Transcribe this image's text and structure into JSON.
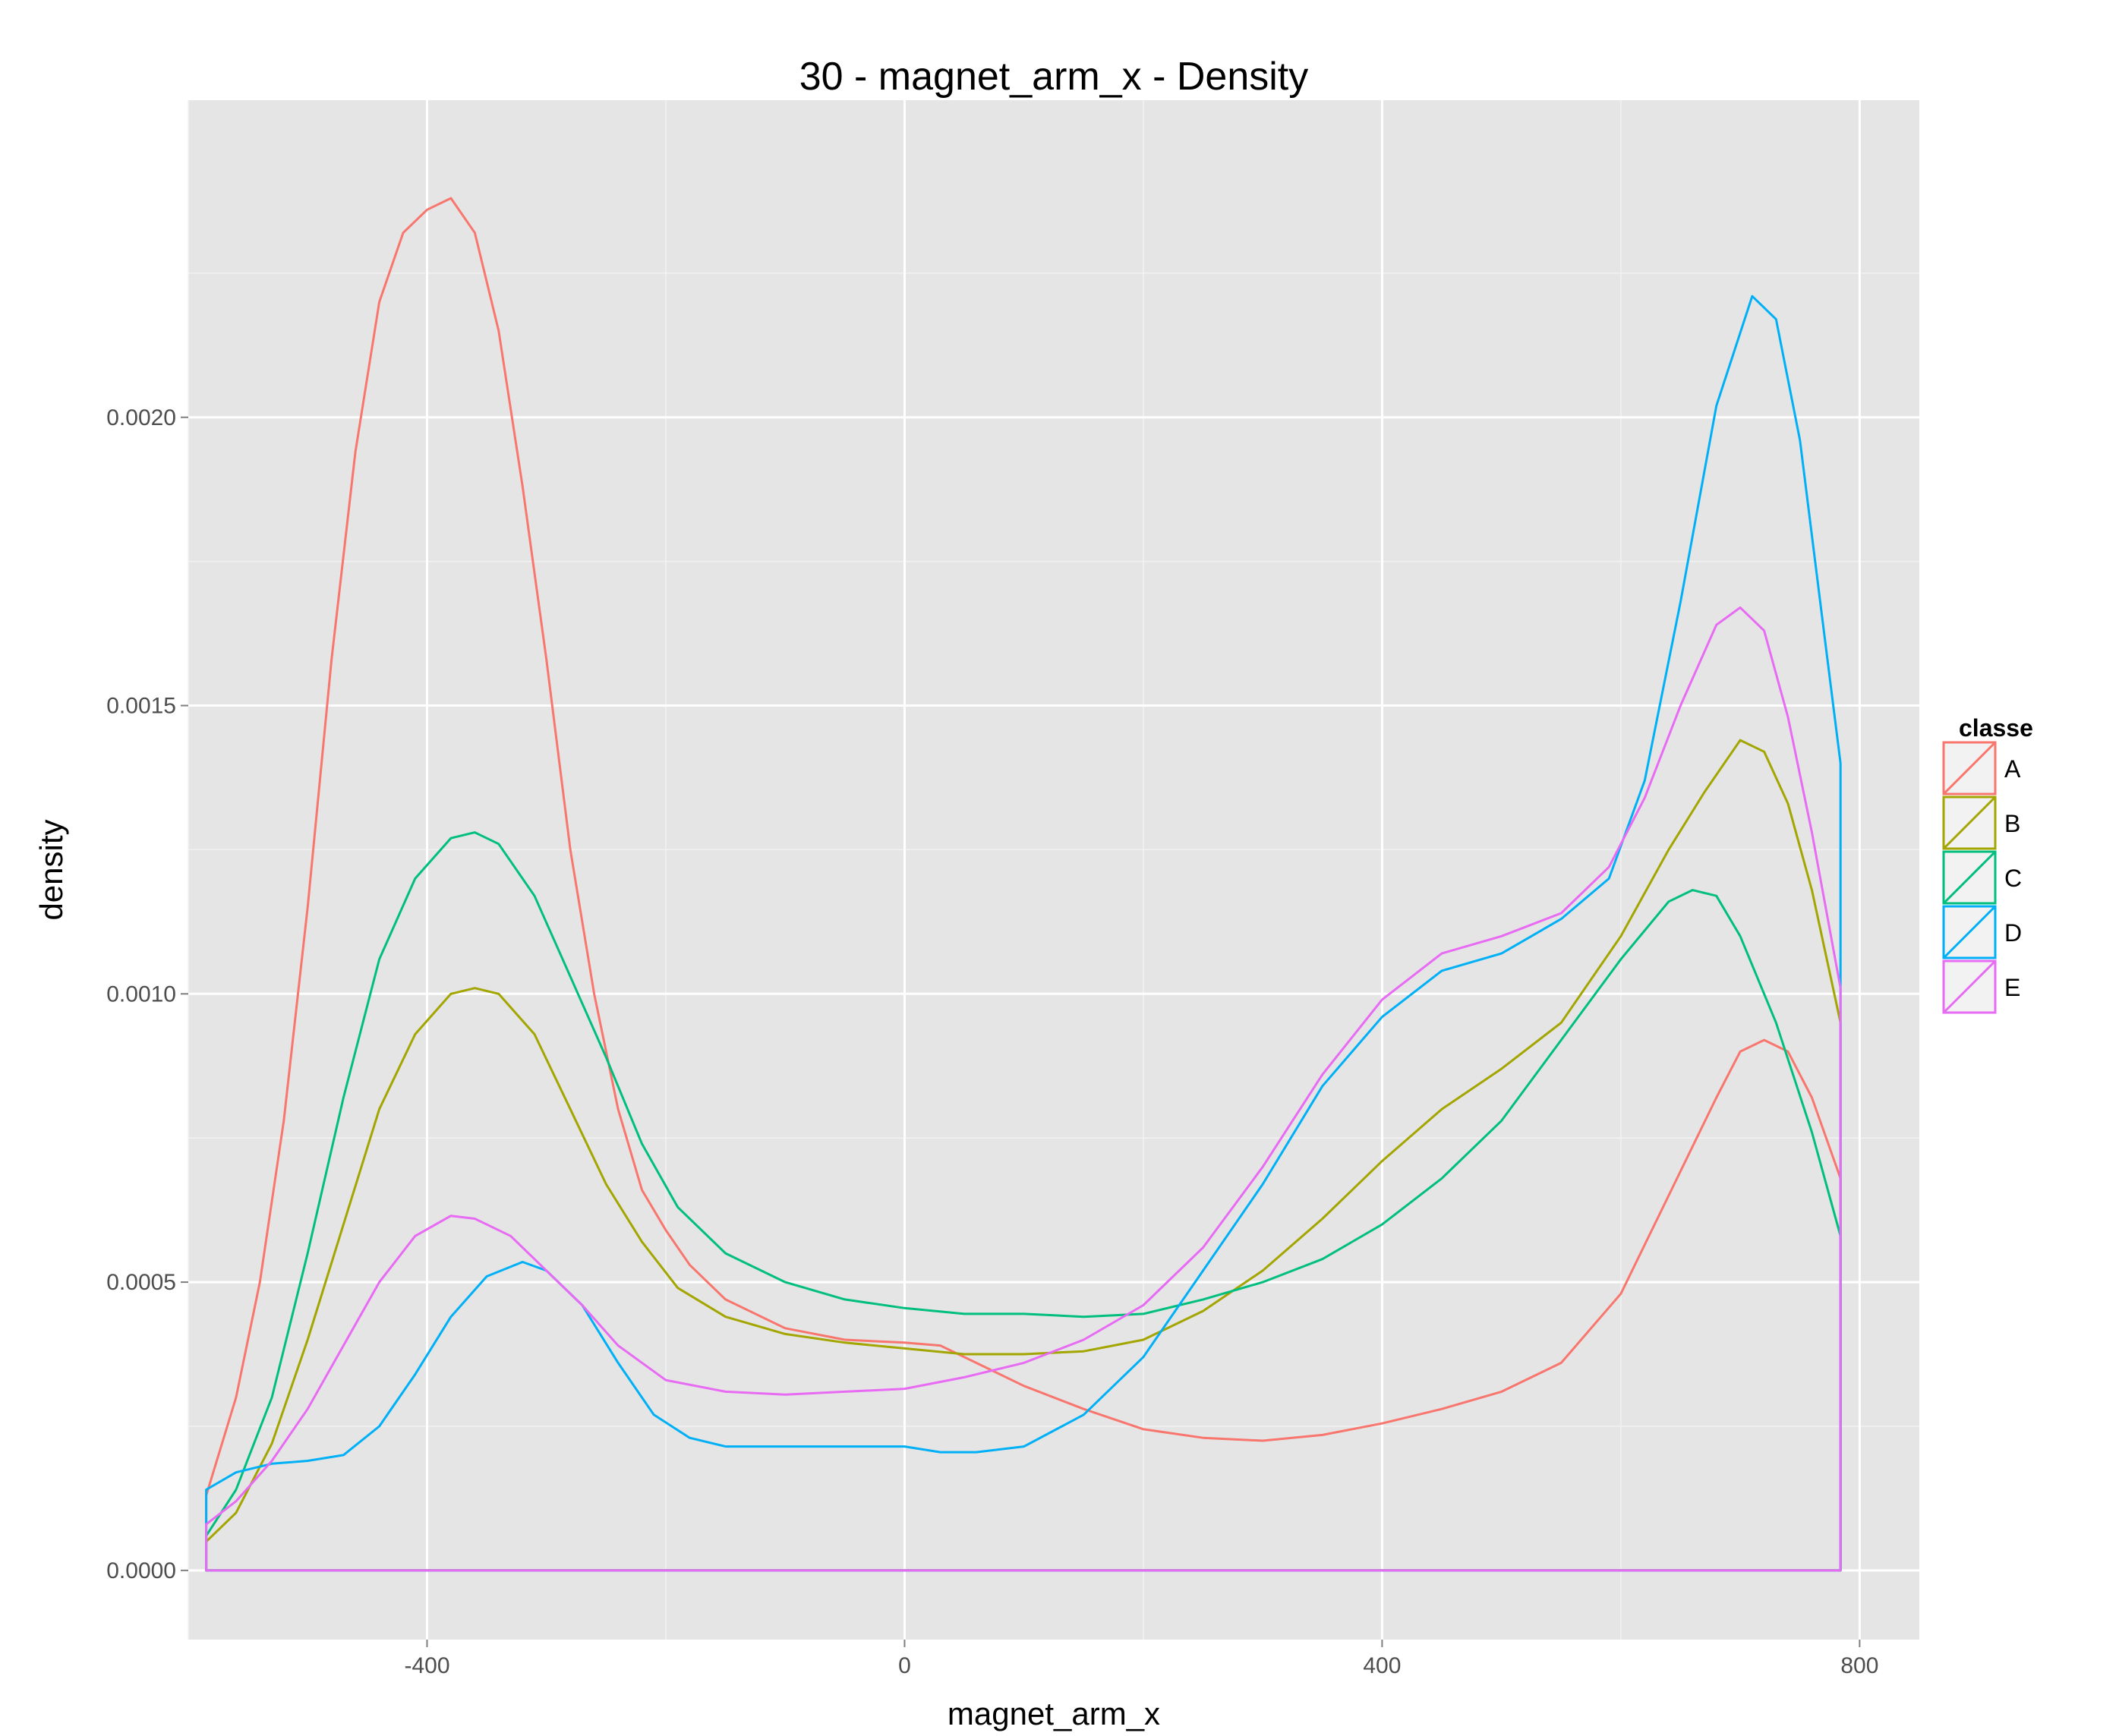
{
  "chart_data": {
    "type": "line",
    "title": "30 - magnet_arm_x - Density",
    "xlabel": "magnet_arm_x",
    "ylabel": "density",
    "xlim": [
      -600,
      850
    ],
    "ylim": [
      -0.00012,
      0.00255
    ],
    "x_ticks": [
      -400,
      0,
      400,
      800
    ],
    "x_tick_labels": [
      "-400",
      "0",
      "400",
      "800"
    ],
    "y_ticks": [
      0,
      0.0005,
      0.001,
      0.0015,
      0.002
    ],
    "y_tick_labels": [
      "0.0000",
      "0.0005",
      "0.0010",
      "0.0015",
      "0.0020"
    ],
    "x_range_data": [
      -585,
      784
    ],
    "grid": true,
    "background": "#e5e5e5",
    "legend": {
      "title": "classe",
      "position": "right"
    },
    "series": [
      {
        "name": "A",
        "color": "#F8766D",
        "points": [
          [
            -585,
            0.00013
          ],
          [
            -560,
            0.0003
          ],
          [
            -540,
            0.0005
          ],
          [
            -520,
            0.00078
          ],
          [
            -500,
            0.00115
          ],
          [
            -480,
            0.00158
          ],
          [
            -460,
            0.00194
          ],
          [
            -440,
            0.0022
          ],
          [
            -420,
            0.00232
          ],
          [
            -400,
            0.00236
          ],
          [
            -380,
            0.00238
          ],
          [
            -360,
            0.00232
          ],
          [
            -340,
            0.00215
          ],
          [
            -320,
            0.00188
          ],
          [
            -300,
            0.00158
          ],
          [
            -280,
            0.00125
          ],
          [
            -260,
            0.001
          ],
          [
            -240,
            0.0008
          ],
          [
            -220,
            0.00066
          ],
          [
            -200,
            0.00059
          ],
          [
            -180,
            0.00053
          ],
          [
            -150,
            0.00047
          ],
          [
            -100,
            0.00042
          ],
          [
            -50,
            0.0004
          ],
          [
            0,
            0.000395
          ],
          [
            30,
            0.00039
          ],
          [
            60,
            0.00036
          ],
          [
            100,
            0.00032
          ],
          [
            150,
            0.00028
          ],
          [
            200,
            0.000245
          ],
          [
            250,
            0.00023
          ],
          [
            300,
            0.000225
          ],
          [
            350,
            0.000235
          ],
          [
            400,
            0.000255
          ],
          [
            450,
            0.00028
          ],
          [
            500,
            0.00031
          ],
          [
            550,
            0.00036
          ],
          [
            600,
            0.00048
          ],
          [
            640,
            0.00065
          ],
          [
            680,
            0.00082
          ],
          [
            700,
            0.0009
          ],
          [
            720,
            0.00092
          ],
          [
            740,
            0.0009
          ],
          [
            760,
            0.00082
          ],
          [
            784,
            0.00068
          ]
        ]
      },
      {
        "name": "B",
        "color": "#A3A500",
        "points": [
          [
            -585,
            5e-05
          ],
          [
            -560,
            0.0001
          ],
          [
            -530,
            0.00022
          ],
          [
            -500,
            0.0004
          ],
          [
            -470,
            0.0006
          ],
          [
            -440,
            0.0008
          ],
          [
            -410,
            0.00093
          ],
          [
            -380,
            0.001
          ],
          [
            -360,
            0.00101
          ],
          [
            -340,
            0.001
          ],
          [
            -310,
            0.00093
          ],
          [
            -280,
            0.0008
          ],
          [
            -250,
            0.00067
          ],
          [
            -220,
            0.00057
          ],
          [
            -190,
            0.00049
          ],
          [
            -150,
            0.00044
          ],
          [
            -100,
            0.00041
          ],
          [
            -50,
            0.000395
          ],
          [
            0,
            0.000385
          ],
          [
            50,
            0.000375
          ],
          [
            100,
            0.000375
          ],
          [
            150,
            0.00038
          ],
          [
            200,
            0.0004
          ],
          [
            250,
            0.00045
          ],
          [
            300,
            0.00052
          ],
          [
            350,
            0.00061
          ],
          [
            400,
            0.00071
          ],
          [
            450,
            0.0008
          ],
          [
            500,
            0.00087
          ],
          [
            550,
            0.00095
          ],
          [
            600,
            0.0011
          ],
          [
            640,
            0.00125
          ],
          [
            670,
            0.00135
          ],
          [
            700,
            0.00144
          ],
          [
            720,
            0.00142
          ],
          [
            740,
            0.00133
          ],
          [
            760,
            0.00118
          ],
          [
            784,
            0.00095
          ]
        ]
      },
      {
        "name": "C",
        "color": "#00BF7D",
        "points": [
          [
            -585,
            6e-05
          ],
          [
            -560,
            0.00014
          ],
          [
            -530,
            0.0003
          ],
          [
            -500,
            0.00055
          ],
          [
            -470,
            0.00082
          ],
          [
            -440,
            0.00106
          ],
          [
            -410,
            0.0012
          ],
          [
            -380,
            0.00127
          ],
          [
            -360,
            0.00128
          ],
          [
            -340,
            0.00126
          ],
          [
            -310,
            0.00117
          ],
          [
            -280,
            0.00103
          ],
          [
            -250,
            0.00089
          ],
          [
            -220,
            0.00074
          ],
          [
            -190,
            0.00063
          ],
          [
            -150,
            0.00055
          ],
          [
            -100,
            0.0005
          ],
          [
            -50,
            0.00047
          ],
          [
            0,
            0.000455
          ],
          [
            50,
            0.000445
          ],
          [
            100,
            0.000445
          ],
          [
            150,
            0.00044
          ],
          [
            200,
            0.000445
          ],
          [
            250,
            0.00047
          ],
          [
            300,
            0.0005
          ],
          [
            350,
            0.00054
          ],
          [
            400,
            0.0006
          ],
          [
            450,
            0.00068
          ],
          [
            500,
            0.00078
          ],
          [
            550,
            0.00092
          ],
          [
            600,
            0.00106
          ],
          [
            640,
            0.00116
          ],
          [
            660,
            0.00118
          ],
          [
            680,
            0.00117
          ],
          [
            700,
            0.0011
          ],
          [
            730,
            0.00095
          ],
          [
            760,
            0.00076
          ],
          [
            784,
            0.00058
          ]
        ]
      },
      {
        "name": "D",
        "color": "#00B0F6",
        "points": [
          [
            -585,
            0.00014
          ],
          [
            -560,
            0.00017
          ],
          [
            -530,
            0.000185
          ],
          [
            -500,
            0.00019
          ],
          [
            -470,
            0.0002
          ],
          [
            -440,
            0.00025
          ],
          [
            -410,
            0.00034
          ],
          [
            -380,
            0.00044
          ],
          [
            -350,
            0.00051
          ],
          [
            -320,
            0.000535
          ],
          [
            -300,
            0.00052
          ],
          [
            -270,
            0.00046
          ],
          [
            -240,
            0.00036
          ],
          [
            -210,
            0.00027
          ],
          [
            -180,
            0.00023
          ],
          [
            -150,
            0.000215
          ],
          [
            -100,
            0.000215
          ],
          [
            -50,
            0.000215
          ],
          [
            0,
            0.000215
          ],
          [
            30,
            0.000205
          ],
          [
            60,
            0.000205
          ],
          [
            100,
            0.000215
          ],
          [
            150,
            0.00027
          ],
          [
            200,
            0.00037
          ],
          [
            250,
            0.00052
          ],
          [
            300,
            0.00067
          ],
          [
            350,
            0.00084
          ],
          [
            400,
            0.00096
          ],
          [
            450,
            0.00104
          ],
          [
            500,
            0.00107
          ],
          [
            550,
            0.00113
          ],
          [
            590,
            0.0012
          ],
          [
            620,
            0.00137
          ],
          [
            650,
            0.00168
          ],
          [
            680,
            0.00202
          ],
          [
            710,
            0.00221
          ],
          [
            730,
            0.00217
          ],
          [
            750,
            0.00196
          ],
          [
            770,
            0.00163
          ],
          [
            784,
            0.0014
          ]
        ]
      },
      {
        "name": "E",
        "color": "#E76BF3",
        "points": [
          [
            -585,
            8e-05
          ],
          [
            -560,
            0.00012
          ],
          [
            -530,
            0.00019
          ],
          [
            -500,
            0.00028
          ],
          [
            -470,
            0.00039
          ],
          [
            -440,
            0.0005
          ],
          [
            -410,
            0.00058
          ],
          [
            -380,
            0.000615
          ],
          [
            -360,
            0.00061
          ],
          [
            -330,
            0.00058
          ],
          [
            -300,
            0.00052
          ],
          [
            -270,
            0.00046
          ],
          [
            -240,
            0.00039
          ],
          [
            -200,
            0.00033
          ],
          [
            -150,
            0.00031
          ],
          [
            -100,
            0.000305
          ],
          [
            -50,
            0.00031
          ],
          [
            0,
            0.000315
          ],
          [
            50,
            0.000335
          ],
          [
            100,
            0.00036
          ],
          [
            150,
            0.0004
          ],
          [
            200,
            0.00046
          ],
          [
            250,
            0.00056
          ],
          [
            300,
            0.0007
          ],
          [
            350,
            0.00086
          ],
          [
            400,
            0.00099
          ],
          [
            450,
            0.00107
          ],
          [
            500,
            0.0011
          ],
          [
            550,
            0.00114
          ],
          [
            590,
            0.00122
          ],
          [
            620,
            0.00134
          ],
          [
            650,
            0.0015
          ],
          [
            680,
            0.00164
          ],
          [
            700,
            0.00167
          ],
          [
            720,
            0.00163
          ],
          [
            740,
            0.00148
          ],
          [
            760,
            0.00128
          ],
          [
            784,
            0.00101
          ]
        ]
      }
    ]
  }
}
